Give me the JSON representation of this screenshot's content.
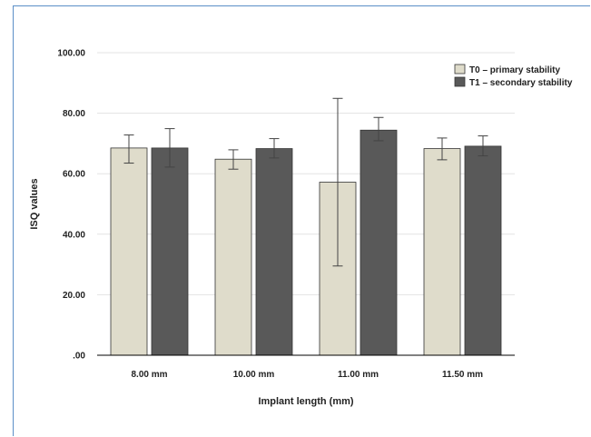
{
  "chart_data": {
    "type": "bar",
    "title": "",
    "xlabel": "Implant length (mm)",
    "ylabel": "ISQ values",
    "categories": [
      "8.00 mm",
      "10.00 mm",
      "11.00 mm",
      "11.50 mm"
    ],
    "yticks": [
      ".00",
      "20.00",
      "40.00",
      "60.00",
      "80.00",
      "100.00"
    ],
    "ylim": [
      0,
      100
    ],
    "grid": true,
    "legend_position": "top-right",
    "series": [
      {
        "name": "T0 – primary stability",
        "color": "#dfdccb",
        "values": [
          68.5,
          64.8,
          57.2,
          68.3
        ],
        "error_low": [
          63.5,
          61.5,
          29.5,
          64.6
        ],
        "error_high": [
          72.8,
          67.9,
          84.9,
          71.8
        ]
      },
      {
        "name": "T1 – secondary stability",
        "color": "#595959",
        "values": [
          68.5,
          68.3,
          74.4,
          69.1
        ],
        "error_low": [
          62.2,
          65.2,
          70.9,
          65.9
        ],
        "error_high": [
          74.9,
          71.6,
          78.6,
          72.5
        ]
      }
    ]
  }
}
